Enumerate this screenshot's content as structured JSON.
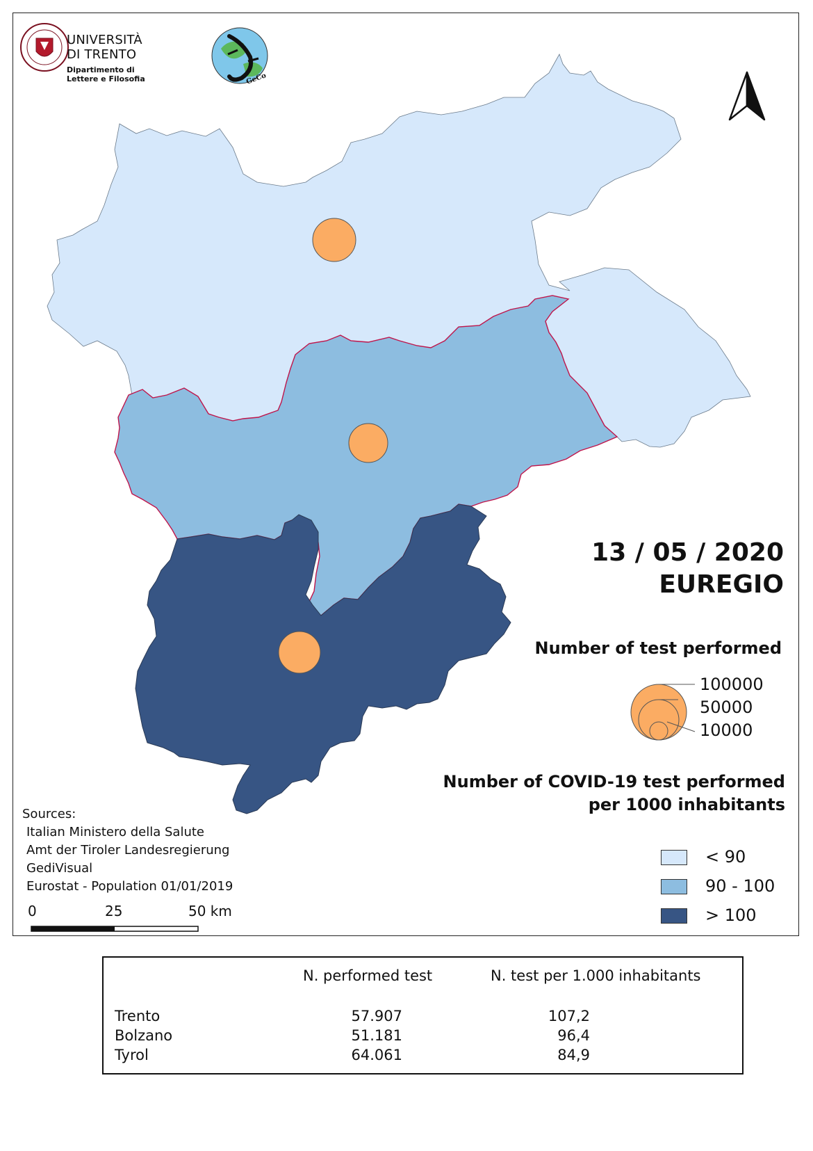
{
  "header": {
    "university_name_line1": "UNIVERSITÀ",
    "university_name_line2": "DI TRENTO",
    "department_line1": "Dipartimento di",
    "department_line2": "Lettere e Filosofia",
    "geco_label": "GeCo",
    "seal_text": "UNIVERSITAS ATHESINA STUDIORUM"
  },
  "title": {
    "date": "13 / 05 / 2020",
    "region": "EUREGIO"
  },
  "map": {
    "regions": [
      {
        "name": "Tyrol",
        "class": "< 90",
        "color": "#d6e8fb",
        "tests": 64061,
        "per_1000": 84.9
      },
      {
        "name": "Bolzano",
        "class": "90 - 100",
        "color": "#8dbde0",
        "tests": 51181,
        "per_1000": 96.4
      },
      {
        "name": "Trento",
        "class": "> 100",
        "color": "#375584",
        "tests": 57907,
        "per_1000": 107.2
      }
    ],
    "border_color": "#c0144a",
    "symbol_color": "#fbac63",
    "north_arrow": "north-arrow-icon"
  },
  "legend": {
    "tests_title": "Number of test performed",
    "circle_sizes": [
      "100000",
      "50000",
      "10000"
    ],
    "choropleth_title_line1": "Number of COVID-19 test performed",
    "choropleth_title_line2": "per 1000 inhabitants",
    "classes": [
      {
        "label": "< 90",
        "color": "#d6e8fb"
      },
      {
        "label": "90 - 100",
        "color": "#8dbde0"
      },
      {
        "label": "> 100",
        "color": "#375584"
      }
    ]
  },
  "sources": {
    "heading": "Sources:",
    "items": [
      "Italian Ministero della Salute",
      "Amt der Tiroler Landesregierung",
      "GediVisual",
      "Eurostat - Population 01/01/2019"
    ]
  },
  "scale_bar": {
    "labels": [
      "0",
      "25",
      "50 km"
    ]
  },
  "table": {
    "headers": [
      "",
      "N. performed test",
      "N. test per 1.000 inhabitants"
    ],
    "rows": [
      {
        "name": "Trento",
        "tests": "57.907",
        "per_1000": "107,2"
      },
      {
        "name": "Bolzano",
        "tests": "51.181",
        "per_1000": "96,4"
      },
      {
        "name": "Tyrol",
        "tests": "64.061",
        "per_1000": "84,9"
      }
    ]
  }
}
